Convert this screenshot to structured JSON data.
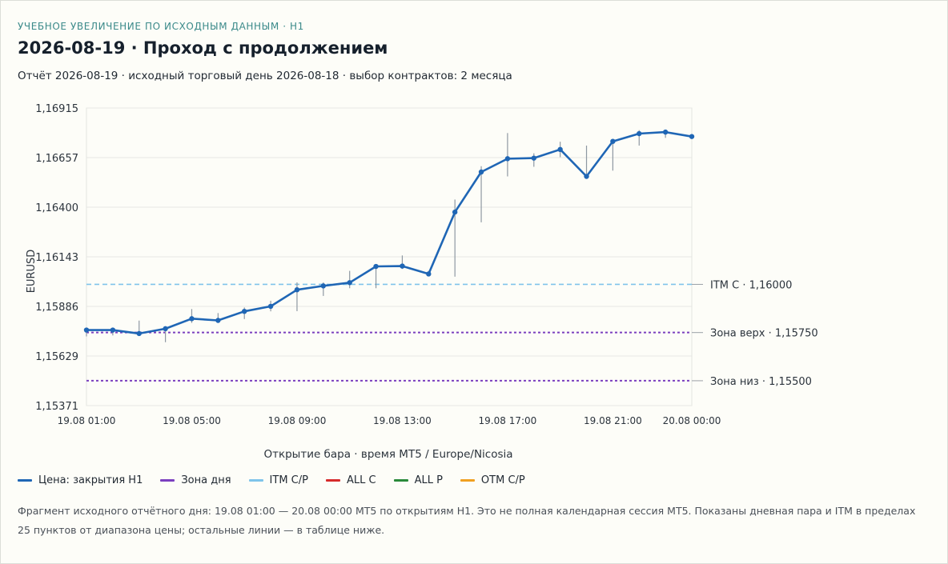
{
  "header": {
    "kicker": "УЧЕБНОЕ УВЕЛИЧЕНИЕ ПО ИСХОДНЫМ ДАННЫМ · H1",
    "title": "2026-08-19 · Проход с продолжением",
    "subtitle": "Отчёт 2026-08-19 · исходный торговый день 2026-08-18 · выбор контрактов: 2 месяца"
  },
  "chart_data": {
    "type": "line",
    "ylabel": "EURUSD",
    "xlabel": "Открытие бара · время MT5 / Europe/Nicosia",
    "ylim": [
      1.15371,
      1.16915
    ],
    "yticks": [
      "1,16915",
      "1,16657",
      "1,16400",
      "1,16143",
      "1,15886",
      "1,15629",
      "1,15371"
    ],
    "xticks": [
      "19.08 01:00",
      "19.08 05:00",
      "19.08 09:00",
      "19.08 13:00",
      "19.08 17:00",
      "19.08 21:00",
      "20.08 00:00"
    ],
    "xtick_hours": [
      0,
      4,
      8,
      12,
      16,
      20,
      23
    ],
    "grid": true,
    "series": [
      {
        "name": "Цена: закрытия H1",
        "color": "#1f66b5",
        "hours": [
          0,
          1,
          2,
          3,
          4,
          5,
          6,
          7,
          8,
          9,
          10,
          11,
          12,
          13,
          14,
          15,
          16,
          17,
          18,
          19,
          20,
          21,
          22,
          23
        ],
        "close": [
          1.15763,
          1.15763,
          1.15745,
          1.1577,
          1.15822,
          1.15813,
          1.1586,
          1.15886,
          1.15972,
          1.15992,
          1.16009,
          1.16093,
          1.16095,
          1.16054,
          1.16375,
          1.16583,
          1.16652,
          1.16655,
          1.167,
          1.1656,
          1.16742,
          1.16782,
          1.1679,
          1.16767
        ],
        "high": [
          1.1577,
          1.1577,
          1.15812,
          1.1578,
          1.15872,
          1.15851,
          1.1588,
          1.15915,
          1.1601,
          1.1601,
          1.1607,
          1.16105,
          1.1615,
          1.1607,
          1.1644,
          1.16613,
          1.16785,
          1.1668,
          1.1674,
          1.1672,
          1.1675,
          1.168,
          1.168,
          1.1678
        ],
        "low": [
          1.1573,
          1.15735,
          1.1574,
          1.157,
          1.158,
          1.15805,
          1.1582,
          1.1586,
          1.15861,
          1.1594,
          1.1598,
          1.1598,
          1.1608,
          1.1605,
          1.1604,
          1.16322,
          1.1656,
          1.1661,
          1.1666,
          1.1657,
          1.1659,
          1.1672,
          1.1676,
          1.1676
        ]
      }
    ],
    "levels": [
      {
        "label": "ITM C · 1,16000",
        "value": 1.16,
        "color": "#7fc4ea",
        "dash": "dashed"
      },
      {
        "label": "Зона верх · 1,15750",
        "value": 1.1575,
        "color": "#7b3fbf",
        "dash": "dotted"
      },
      {
        "label": "Зона низ · 1,15500",
        "value": 1.155,
        "color": "#7b3fbf",
        "dash": "dotted"
      }
    ]
  },
  "legend": [
    {
      "label": "Цена: закрытия H1",
      "color": "#1f66b5"
    },
    {
      "label": "Зона дня",
      "color": "#7b3fbf"
    },
    {
      "label": "ITM C/P",
      "color": "#7fc4ea"
    },
    {
      "label": "ALL C",
      "color": "#d62b2b"
    },
    {
      "label": "ALL P",
      "color": "#2a8a3a"
    },
    {
      "label": "OTM C/P",
      "color": "#f0a020"
    }
  ],
  "footnote": "Фрагмент исходного отчётного дня: 19.08 01:00 — 20.08 00:00 MT5 по открытиям H1. Это не полная календарная сессия MT5. Показаны дневная пара и ITM в пределах 25 пунктов от диапазона цены; остальные линии — в таблице ниже."
}
